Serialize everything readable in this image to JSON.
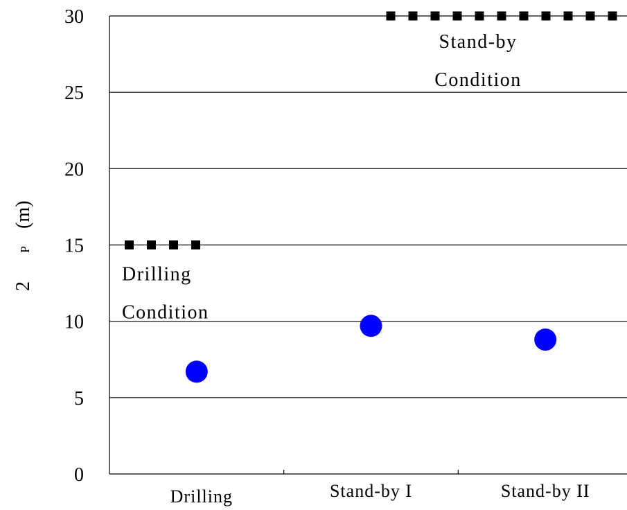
{
  "chart_data": {
    "type": "scatter",
    "ylabel": "2",
    "ylabel_subscript": "P",
    "ylabel_unit": "(m)",
    "ylim": [
      0,
      30
    ],
    "yticks": [
      0,
      5,
      10,
      15,
      20,
      25,
      30
    ],
    "grid": true,
    "categories": [
      "Drilling",
      "Stand-by I",
      "Stand-by II"
    ],
    "series": [
      {
        "values": [
          6.7,
          9.7,
          8.8
        ],
        "color": "#0000ff",
        "marker": "circle"
      }
    ],
    "thresholds": [
      {
        "value": 15,
        "label_lines": [
          "Drilling",
          "Condition"
        ],
        "span": [
          0,
          0.5
        ],
        "color": "#000000",
        "style": "dashed"
      },
      {
        "value": 30,
        "label_lines": [
          "Stand-by",
          "Condition"
        ],
        "span": [
          1.5,
          3
        ],
        "color": "#000000",
        "style": "dashed"
      }
    ]
  }
}
